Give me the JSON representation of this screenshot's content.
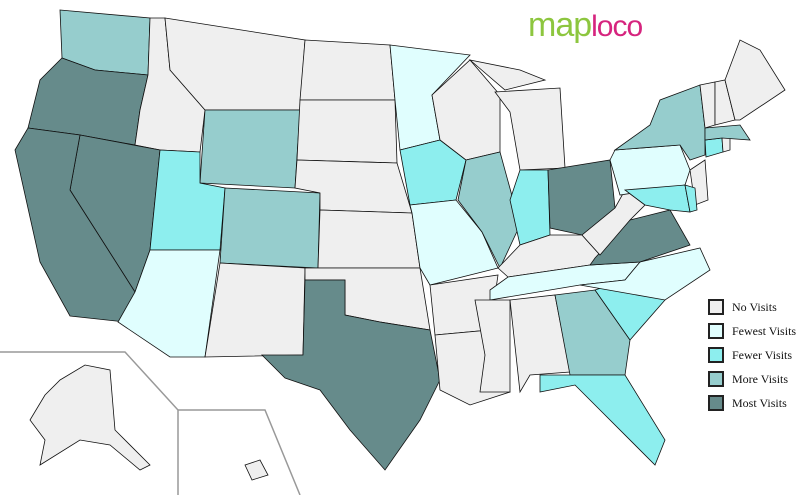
{
  "logo": {
    "part1": "map",
    "part2": "loco"
  },
  "legend": [
    {
      "key": "none",
      "label": "No Visits",
      "color": "#efefef"
    },
    {
      "key": "fewest",
      "label": "Fewest Visits",
      "color": "#e0fefe"
    },
    {
      "key": "fewer",
      "label": "Fewer Visits",
      "color": "#8deeee"
    },
    {
      "key": "more",
      "label": "More Visits",
      "color": "#96cdcd"
    },
    {
      "key": "most",
      "label": "Most Visits",
      "color": "#668b8b"
    }
  ],
  "states": {
    "WA": "more",
    "OR": "most",
    "CA": "most",
    "NV": "most",
    "ID": "none",
    "MT": "none",
    "WY": "more",
    "UT": "fewer",
    "AZ": "fewest",
    "CO": "more",
    "NM": "none",
    "ND": "none",
    "SD": "none",
    "NE": "none",
    "KS": "none",
    "OK": "none",
    "TX": "most",
    "MN": "fewest",
    "IA": "fewer",
    "MO": "fewest",
    "AR": "none",
    "LA": "none",
    "WI": "none",
    "IL": "more",
    "MI": "none",
    "IN": "fewer",
    "OH": "most",
    "KY": "none",
    "TN": "fewest",
    "MS": "none",
    "AL": "none",
    "GA": "more",
    "FL": "fewer",
    "SC": "fewer",
    "NC": "fewest",
    "VA": "most",
    "WV": "none",
    "PA": "fewest",
    "NY": "more",
    "NJ": "none",
    "MD": "fewer",
    "DE": "fewer",
    "CT": "fewer",
    "RI": "none",
    "MA": "more",
    "VT": "none",
    "NH": "none",
    "ME": "none",
    "AK": "none",
    "HI": "none"
  }
}
